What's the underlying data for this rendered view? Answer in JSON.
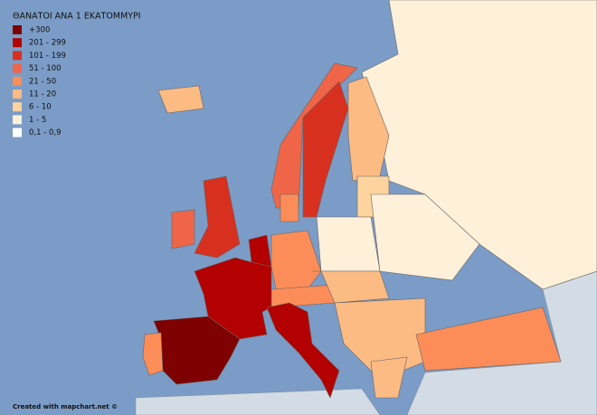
{
  "legend": {
    "title": "ΘΑΝΑΤΟΙ ΑΝΑ 1 ΕΚΑΤΟΜΜΥΡΙ",
    "items": [
      {
        "label": "+300",
        "color": "#7f0000"
      },
      {
        "label": "201 - 299",
        "color": "#b30000"
      },
      {
        "label": "101 - 199",
        "color": "#d7301f"
      },
      {
        "label": "51 - 100",
        "color": "#ef6548"
      },
      {
        "label": "21 - 50",
        "color": "#fc8d59"
      },
      {
        "label": "11 - 20",
        "color": "#fdbb84"
      },
      {
        "label": "6 - 10",
        "color": "#fdd49e"
      },
      {
        "label": "1 - 5",
        "color": "#fef0d9"
      },
      {
        "label": "0,1 - 0,9",
        "color": "#ffffff"
      }
    ]
  },
  "footer": "Created with mapchart.net ©"
}
